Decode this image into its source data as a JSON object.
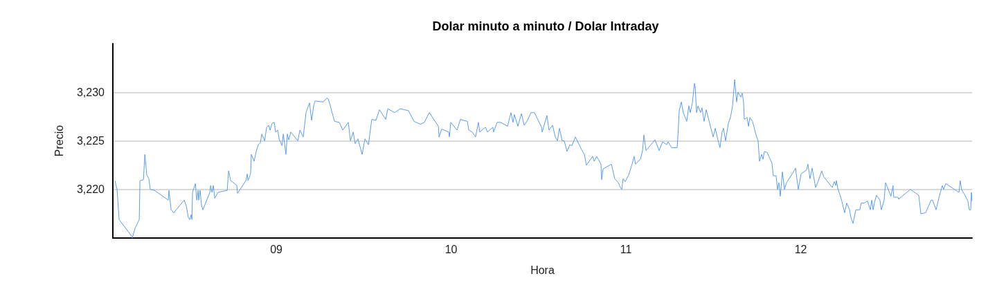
{
  "chart_data": {
    "type": "line",
    "title": "Dolar minuto a minuto / Dolar Intraday",
    "xlabel": "Hora",
    "ylabel": "Precio",
    "xlim": [
      8.065,
      12.98
    ],
    "ylim": [
      3215,
      3235
    ],
    "xticks": [
      {
        "value": 9,
        "label": "09"
      },
      {
        "value": 10,
        "label": "10"
      },
      {
        "value": 11,
        "label": "11"
      },
      {
        "value": 12,
        "label": "12"
      }
    ],
    "yticks": [
      {
        "value": 3220,
        "label": "3,220"
      },
      {
        "value": 3225,
        "label": "3,225"
      },
      {
        "value": 3230,
        "label": "3,230"
      }
    ],
    "grid": "y",
    "marker": "none",
    "line_style": "solid",
    "series": [
      {
        "color": "#5b9cf0",
        "x": [
          8.077,
          8.089,
          8.101,
          8.168,
          8.176,
          8.192,
          8.216,
          8.22,
          8.24,
          8.248,
          8.259,
          8.271,
          8.279,
          8.303,
          8.382,
          8.386,
          8.398,
          8.414,
          8.45,
          8.473,
          8.485,
          8.497,
          8.505,
          8.513,
          8.517,
          8.521,
          8.537,
          8.545,
          8.553,
          8.556,
          8.564,
          8.572,
          8.58,
          8.62,
          8.624,
          8.632,
          8.64,
          8.648,
          8.667,
          8.719,
          8.727,
          8.739,
          8.754,
          8.774,
          8.778,
          8.826,
          8.834,
          8.838,
          8.853,
          8.857,
          8.873,
          8.885,
          8.897,
          8.909,
          8.917,
          8.933,
          8.945,
          8.956,
          8.964,
          8.976,
          8.988,
          8.996,
          9.008,
          9.016,
          9.032,
          9.04,
          9.055,
          9.063,
          9.071,
          9.083,
          9.123,
          9.135,
          9.154,
          9.17,
          9.19,
          9.202,
          9.214,
          9.222,
          9.269,
          9.289,
          9.297,
          9.309,
          9.325,
          9.333,
          9.36,
          9.38,
          9.412,
          9.424,
          9.44,
          9.451,
          9.467,
          9.491,
          9.507,
          9.527,
          9.546,
          9.57,
          9.59,
          9.626,
          9.638,
          9.677,
          9.709,
          9.756,
          9.788,
          9.824,
          9.847,
          9.875,
          9.927,
          9.931,
          9.946,
          9.986,
          9.99,
          9.998,
          10.034,
          10.053,
          10.093,
          10.101,
          10.121,
          10.14,
          10.156,
          10.164,
          10.196,
          10.208,
          10.239,
          10.243,
          10.263,
          10.283,
          10.323,
          10.342,
          10.354,
          10.362,
          10.382,
          10.402,
          10.418,
          10.437,
          10.457,
          10.477,
          10.517,
          10.521,
          10.548,
          10.56,
          10.58,
          10.596,
          10.608,
          10.62,
          10.635,
          10.647,
          10.663,
          10.679,
          10.691,
          10.711,
          10.746,
          10.762,
          10.774,
          10.81,
          10.818,
          10.833,
          10.857,
          10.861,
          10.869,
          10.917,
          10.936,
          10.956,
          10.968,
          10.976,
          10.984,
          10.996,
          11.016,
          11.035,
          11.047,
          11.055,
          11.083,
          11.095,
          11.103,
          11.115,
          11.166,
          11.19,
          11.21,
          11.233,
          11.241,
          11.261,
          11.293,
          11.297,
          11.305,
          11.317,
          11.328,
          11.348,
          11.36,
          11.368,
          11.38,
          11.392,
          11.396,
          11.404,
          11.412,
          11.427,
          11.435,
          11.447,
          11.459,
          11.479,
          11.499,
          11.511,
          11.526,
          11.538,
          11.55,
          11.558,
          11.57,
          11.586,
          11.598,
          11.61,
          11.622,
          11.633,
          11.641,
          11.657,
          11.665,
          11.673,
          11.677,
          11.693,
          11.701,
          11.709,
          11.724,
          11.74,
          11.748,
          11.756,
          11.764,
          11.776,
          11.784,
          11.792,
          11.808,
          11.835,
          11.843,
          11.859,
          11.867,
          11.875,
          11.883,
          11.895,
          11.907,
          11.919,
          11.962,
          11.97,
          11.986,
          12.002,
          12.033,
          12.041,
          12.053,
          12.065,
          12.085,
          12.101,
          12.12,
          12.132,
          12.18,
          12.192,
          12.2,
          12.204,
          12.212,
          12.223,
          12.235,
          12.251,
          12.263,
          12.279,
          12.287,
          12.299,
          12.315,
          12.338,
          12.346,
          12.362,
          12.382,
          12.398,
          12.406,
          12.414,
          12.421,
          12.433,
          12.453,
          12.461,
          12.477,
          12.485,
          12.516,
          12.528,
          12.532,
          12.556,
          12.56,
          12.627,
          12.675,
          12.687,
          12.714,
          12.746,
          12.754,
          12.774,
          12.786,
          12.794,
          12.81,
          12.817,
          12.829,
          12.905,
          12.912,
          12.92,
          12.936,
          12.956,
          12.964,
          12.972,
          12.976,
          12.98
        ],
        "values": [
          3220.9,
          3220.0,
          3216.9,
          3215.3,
          3215.0,
          3216.0,
          3216.9,
          3220.9,
          3221.0,
          3223.6,
          3221.5,
          3221.1,
          3220.0,
          3219.9,
          3218.9,
          3219.9,
          3217.9,
          3217.6,
          3218.4,
          3218.9,
          3218.3,
          3217.1,
          3216.9,
          3217.4,
          3216.9,
          3219.7,
          3220.6,
          3218.9,
          3219.9,
          3218.9,
          3219.9,
          3218.4,
          3217.9,
          3219.7,
          3220.4,
          3219.7,
          3220.4,
          3219.1,
          3219.7,
          3219.9,
          3221.9,
          3220.9,
          3220.7,
          3220.4,
          3219.6,
          3220.9,
          3221.6,
          3220.9,
          3221.6,
          3223.6,
          3222.9,
          3223.9,
          3224.6,
          3224.8,
          3225.7,
          3225.0,
          3226.4,
          3226.6,
          3226.1,
          3226.8,
          3226.9,
          3225.9,
          3226.1,
          3225.2,
          3224.5,
          3225.7,
          3223.6,
          3225.7,
          3225.1,
          3225.9,
          3225.0,
          3226.1,
          3225.4,
          3227.9,
          3228.9,
          3227.1,
          3228.6,
          3229.1,
          3229.0,
          3229.4,
          3229.3,
          3228.6,
          3227.5,
          3227.0,
          3226.9,
          3226.1,
          3226.9,
          3225.0,
          3225.9,
          3224.7,
          3225.2,
          3223.6,
          3225.2,
          3224.6,
          3227.2,
          3227.1,
          3228.2,
          3227.2,
          3228.3,
          3227.9,
          3228.3,
          3228.1,
          3227.0,
          3226.7,
          3226.9,
          3227.9,
          3226.5,
          3225.4,
          3226.2,
          3225.9,
          3225.4,
          3226.9,
          3226.1,
          3227.2,
          3227.0,
          3226.1,
          3225.9,
          3225.4,
          3226.9,
          3225.9,
          3226.4,
          3225.9,
          3226.4,
          3225.9,
          3226.9,
          3226.9,
          3226.5,
          3227.9,
          3226.9,
          3227.7,
          3226.5,
          3227.8,
          3226.6,
          3227.1,
          3227.9,
          3227.9,
          3226.4,
          3225.9,
          3227.6,
          3226.1,
          3226.6,
          3225.4,
          3225.0,
          3226.3,
          3225.0,
          3225.0,
          3223.9,
          3224.6,
          3224.5,
          3225.4,
          3224.1,
          3223.6,
          3222.5,
          3223.4,
          3222.9,
          3223.4,
          3222.6,
          3221.0,
          3222.1,
          3222.6,
          3221.1,
          3220.7,
          3220.2,
          3220.0,
          3221.1,
          3220.8,
          3221.5,
          3222.6,
          3223.4,
          3222.6,
          3223.1,
          3224.0,
          3225.6,
          3224.0,
          3225.1,
          3224.0,
          3224.9,
          3224.6,
          3224.9,
          3224.3,
          3224.3,
          3225.4,
          3228.1,
          3229.0,
          3227.9,
          3227.0,
          3228.6,
          3227.9,
          3228.9,
          3230.9,
          3230.6,
          3227.9,
          3228.6,
          3227.9,
          3228.4,
          3227.0,
          3228.2,
          3226.8,
          3225.4,
          3226.3,
          3225.1,
          3224.3,
          3225.9,
          3226.3,
          3225.0,
          3226.8,
          3227.4,
          3228.6,
          3231.3,
          3229.0,
          3230.0,
          3229.5,
          3229.9,
          3229.0,
          3227.2,
          3227.4,
          3226.5,
          3227.4,
          3227.0,
          3225.9,
          3225.4,
          3225.0,
          3222.9,
          3223.6,
          3223.1,
          3223.9,
          3223.8,
          3222.7,
          3221.4,
          3221.4,
          3220.0,
          3220.7,
          3219.3,
          3221.8,
          3220.0,
          3220.7,
          3221.9,
          3222.2,
          3220.0,
          3221.6,
          3222.0,
          3222.6,
          3221.1,
          3222.2,
          3220.2,
          3220.9,
          3221.9,
          3221.3,
          3220.2,
          3220.8,
          3220.4,
          3220.9,
          3220.1,
          3219.5,
          3218.8,
          3217.6,
          3218.6,
          3217.9,
          3217.1,
          3216.5,
          3217.9,
          3217.9,
          3218.6,
          3218.6,
          3218.8,
          3217.9,
          3218.9,
          3217.9,
          3218.6,
          3219.4,
          3218.9,
          3217.9,
          3218.9,
          3220.7,
          3219.3,
          3220.4,
          3219.2,
          3219.2,
          3219.0,
          3220.0,
          3219.4,
          3217.5,
          3217.6,
          3218.9,
          3218.9,
          3217.9,
          3218.8,
          3219.4,
          3220.4,
          3220.0,
          3220.6,
          3219.7,
          3220.9,
          3220.0,
          3219.5,
          3218.8,
          3217.9,
          3217.9,
          3219.7,
          3218.8
        ]
      }
    ]
  }
}
